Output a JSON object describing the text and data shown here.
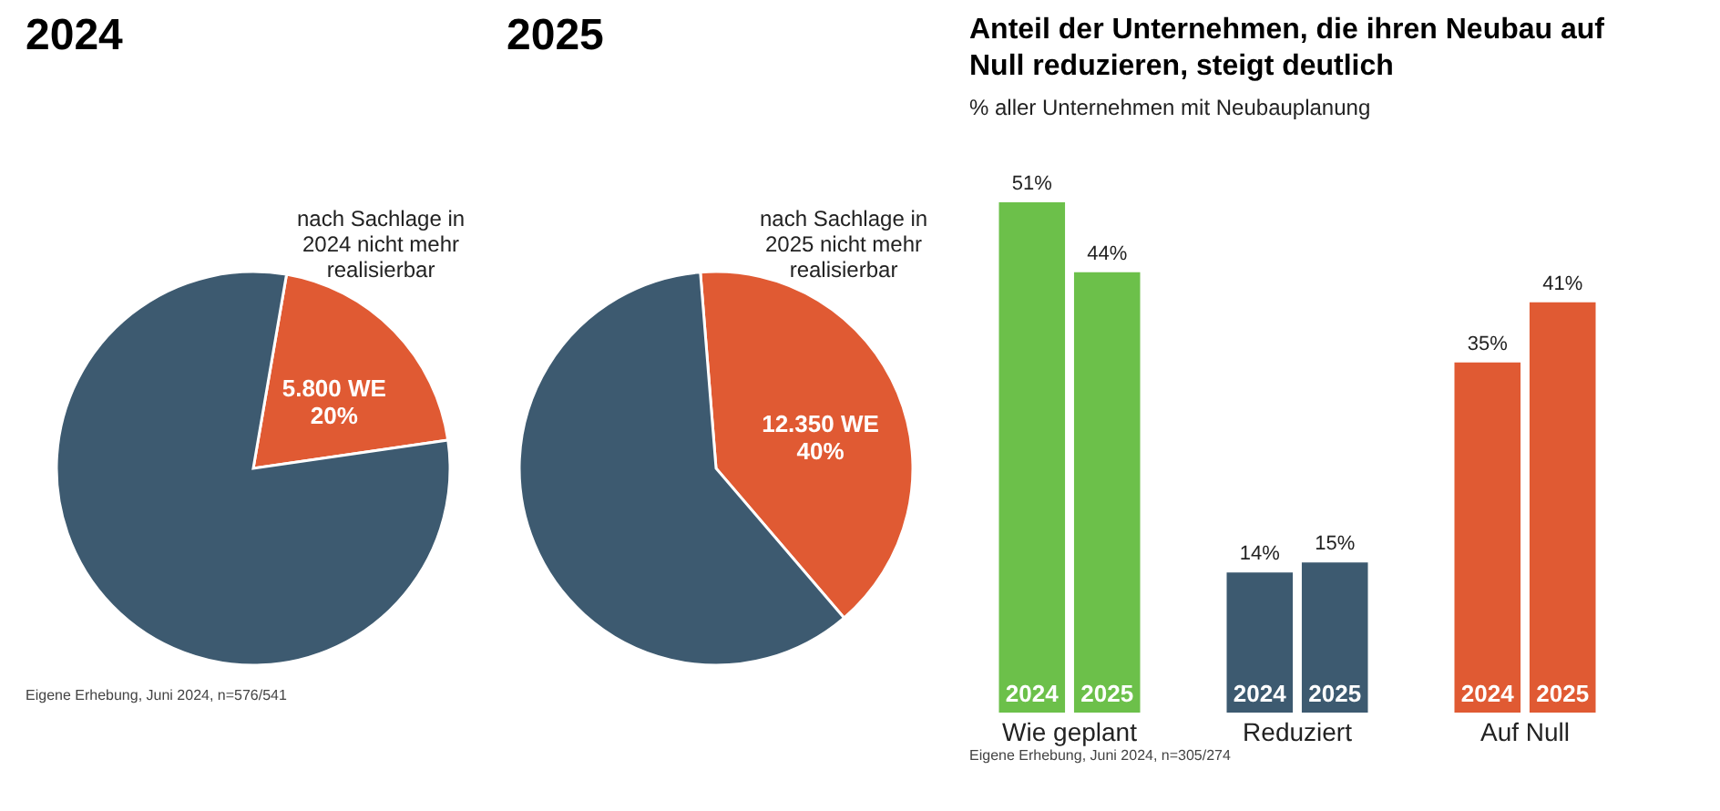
{
  "chart_data": [
    {
      "type": "pie",
      "title": "2024",
      "categories": [
        "nach Sachlage in 2024 nicht mehr realisierbar",
        null
      ],
      "values": [
        20,
        80
      ],
      "colors": [
        "#e05a33",
        "#3d5a70"
      ],
      "value_labels": [
        "5.800 WE\n20%",
        null
      ],
      "annotations": [
        "Eigene Erhebung, Juni 2024, n=576/541"
      ]
    },
    {
      "type": "pie",
      "title": "2025",
      "categories": [
        "nach Sachlage in 2025 nicht mehr realisierbar",
        null
      ],
      "values": [
        40,
        60
      ],
      "colors": [
        "#e05a33",
        "#3d5a70"
      ],
      "value_labels": [
        "12.350 WE\n40%",
        null
      ]
    },
    {
      "type": "bar",
      "title": "Anteil der Unternehmen, die ihren Neubau auf Null reduzieren, steigt deutlich",
      "subtitle": "% aller Unternehmen mit Neubauplanung",
      "categories": [
        "Wie geplant",
        "Reduziert",
        "Auf Null"
      ],
      "tick_labels": "x",
      "series": [
        {
          "name": "2024",
          "colors": [
            "#6cc04a",
            "#3d5a70",
            "#e05a33"
          ],
          "values": [
            51,
            14,
            35
          ],
          "value_labels": [
            "51%",
            "14%",
            "35%"
          ]
        },
        {
          "name": "2025",
          "colors": [
            "#6cc04a",
            "#3d5a70",
            "#e05a33"
          ],
          "values": [
            44,
            15,
            41
          ],
          "value_labels": [
            "44%",
            "15%",
            "41%"
          ]
        }
      ],
      "annotations": [
        "Eigene Erhebung, Juni 2024, n=305/274"
      ]
    }
  ]
}
